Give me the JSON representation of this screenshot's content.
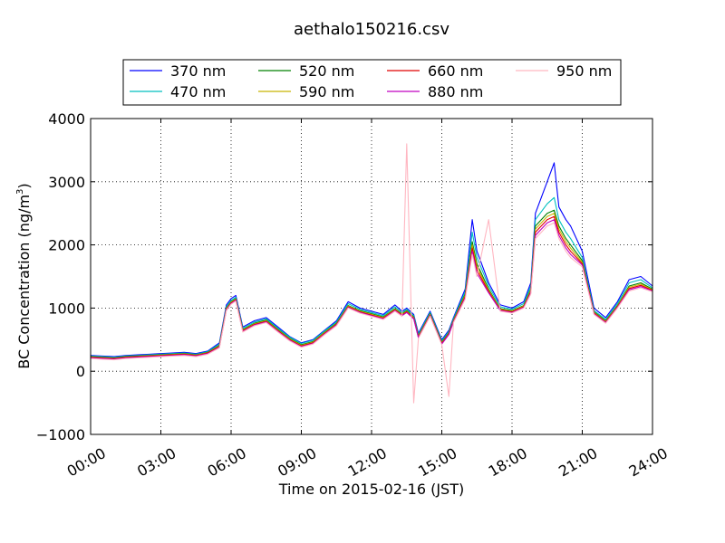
{
  "chart_data": {
    "type": "line",
    "title": "aethalo150216.csv",
    "xlabel": "Time on 2015-02-16 (JST)",
    "ylabel_main": "BC Concentration (ng/m",
    "ylabel_sup": "3",
    "ylabel_end": ")",
    "xlim": [
      0,
      24
    ],
    "ylim": [
      -1000,
      4000
    ],
    "x_tick_values": [
      0,
      3,
      6,
      9,
      12,
      15,
      18,
      21,
      24
    ],
    "x_tick_labels": [
      "00:00",
      "03:00",
      "06:00",
      "09:00",
      "12:00",
      "15:00",
      "18:00",
      "21:00",
      "24:00"
    ],
    "y_tick_values": [
      -1000,
      0,
      1000,
      2000,
      3000,
      4000
    ],
    "y_tick_labels": [
      "−1000",
      "0",
      "1000",
      "2000",
      "3000",
      "4000"
    ],
    "grid": true,
    "legend_position": "top",
    "x": [
      0,
      0.5,
      1,
      1.5,
      2,
      2.5,
      3,
      3.5,
      4,
      4.5,
      5,
      5.5,
      5.8,
      6,
      6.2,
      6.5,
      7,
      7.5,
      8,
      8.5,
      9,
      9.5,
      10,
      10.5,
      11,
      11.5,
      12,
      12.5,
      13,
      13.3,
      13.5,
      13.8,
      14,
      14.5,
      15,
      15.3,
      15.5,
      16,
      16.3,
      16.5,
      17,
      17.5,
      18,
      18.5,
      18.8,
      19,
      19.5,
      19.8,
      20,
      20.3,
      20.5,
      21,
      21.5,
      22,
      22.5,
      23,
      23.5,
      24
    ],
    "series": [
      {
        "name": "370 nm",
        "color": "#0000ff",
        "values": [
          250,
          240,
          230,
          250,
          260,
          270,
          280,
          290,
          300,
          280,
          320,
          450,
          1050,
          1150,
          1200,
          700,
          800,
          850,
          700,
          550,
          450,
          500,
          650,
          800,
          1100,
          1000,
          950,
          900,
          1050,
          950,
          1000,
          900,
          600,
          950,
          500,
          650,
          850,
          1300,
          2400,
          1900,
          1400,
          1050,
          1000,
          1100,
          1400,
          2500,
          3000,
          3300,
          2600,
          2400,
          2300,
          1900,
          1000,
          850,
          1100,
          1450,
          1500,
          1350
        ]
      },
      {
        "name": "470 nm",
        "color": "#00bfbf",
        "values": [
          240,
          230,
          220,
          240,
          250,
          260,
          270,
          280,
          290,
          270,
          310,
          430,
          1020,
          1120,
          1170,
          680,
          780,
          830,
          680,
          540,
          440,
          490,
          640,
          780,
          1070,
          980,
          930,
          880,
          1020,
          930,
          980,
          880,
          580,
          930,
          480,
          630,
          830,
          1260,
          2200,
          1800,
          1350,
          1020,
          980,
          1070,
          1350,
          2400,
          2650,
          2750,
          2400,
          2200,
          2100,
          1800,
          960,
          820,
          1070,
          1400,
          1450,
          1320
        ]
      },
      {
        "name": "520 nm",
        "color": "#008000",
        "values": [
          230,
          220,
          210,
          230,
          240,
          250,
          260,
          270,
          280,
          260,
          300,
          410,
          1000,
          1100,
          1150,
          660,
          760,
          810,
          660,
          520,
          420,
          470,
          620,
          760,
          1040,
          960,
          910,
          860,
          990,
          910,
          960,
          860,
          560,
          910,
          460,
          610,
          810,
          1220,
          2050,
          1700,
          1300,
          990,
          960,
          1040,
          1300,
          2300,
          2500,
          2550,
          2300,
          2100,
          2000,
          1750,
          940,
          800,
          1040,
          1350,
          1400,
          1300
        ]
      },
      {
        "name": "590 nm",
        "color": "#c8b400",
        "values": [
          225,
          215,
          205,
          225,
          235,
          245,
          255,
          265,
          275,
          255,
          295,
          400,
          990,
          1090,
          1140,
          650,
          750,
          800,
          650,
          510,
          410,
          460,
          610,
          750,
          1030,
          950,
          900,
          850,
          980,
          900,
          950,
          850,
          550,
          900,
          450,
          600,
          800,
          1200,
          2000,
          1650,
          1280,
          980,
          950,
          1030,
          1280,
          2250,
          2450,
          2500,
          2250,
          2050,
          1950,
          1720,
          930,
          790,
          1030,
          1330,
          1380,
          1290
        ]
      },
      {
        "name": "660 nm",
        "color": "#e00000",
        "values": [
          220,
          210,
          200,
          220,
          230,
          240,
          250,
          260,
          270,
          250,
          290,
          390,
          980,
          1080,
          1130,
          640,
          740,
          790,
          640,
          500,
          400,
          450,
          600,
          740,
          1020,
          940,
          890,
          840,
          970,
          890,
          940,
          840,
          540,
          890,
          440,
          590,
          790,
          1180,
          1950,
          1600,
          1260,
          970,
          940,
          1020,
          1260,
          2200,
          2400,
          2450,
          2200,
          2000,
          1900,
          1700,
          920,
          780,
          1020,
          1310,
          1360,
          1280
        ]
      },
      {
        "name": "880 nm",
        "color": "#c000c0",
        "values": [
          210,
          200,
          190,
          210,
          220,
          230,
          240,
          250,
          260,
          240,
          280,
          380,
          970,
          1070,
          1120,
          630,
          730,
          780,
          630,
          490,
          390,
          440,
          590,
          730,
          1010,
          930,
          880,
          830,
          960,
          880,
          930,
          830,
          530,
          880,
          430,
          580,
          780,
          1160,
          1900,
          1550,
          1240,
          960,
          930,
          1010,
          1240,
          2150,
          2350,
          2400,
          2150,
          1950,
          1850,
          1680,
          910,
          770,
          1010,
          1290,
          1340,
          1270
        ]
      },
      {
        "name": "950 nm",
        "color": "#ffb6c1",
        "values": [
          200,
          190,
          180,
          200,
          210,
          220,
          230,
          240,
          250,
          230,
          270,
          370,
          960,
          1060,
          1110,
          620,
          720,
          770,
          620,
          480,
          380,
          430,
          580,
          720,
          1000,
          920,
          870,
          820,
          950,
          870,
          3600,
          -500,
          520,
          870,
          420,
          -400,
          770,
          1140,
          1850,
          1500,
          2400,
          950,
          920,
          1000,
          1220,
          2100,
          2300,
          2350,
          2100,
          1900,
          1800,
          1650,
          900,
          760,
          1000,
          1270,
          1320,
          1260
        ]
      }
    ]
  }
}
